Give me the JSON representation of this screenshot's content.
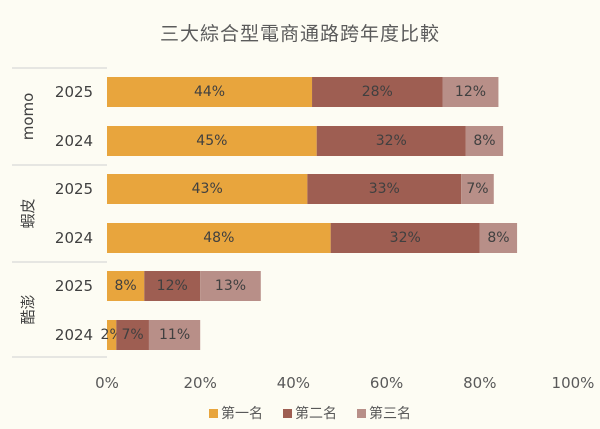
{
  "chart_data": {
    "type": "bar",
    "orientation": "horizontal",
    "stacked": true,
    "title": "三大綜合型電商通路跨年度比較",
    "groups": [
      {
        "name": "momo",
        "rows": [
          {
            "year": "2025",
            "values": [
              44,
              28,
              12
            ]
          },
          {
            "year": "2024",
            "values": [
              45,
              32,
              8
            ]
          }
        ]
      },
      {
        "name": "蝦皮",
        "rows": [
          {
            "year": "2025",
            "values": [
              43,
              33,
              7
            ]
          },
          {
            "year": "2024",
            "values": [
              48,
              32,
              8
            ]
          }
        ]
      },
      {
        "name": "酷澎",
        "rows": [
          {
            "year": "2025",
            "values": [
              8,
              12,
              13
            ]
          },
          {
            "year": "2024",
            "values": [
              2,
              7,
              11
            ]
          }
        ]
      }
    ],
    "series": [
      {
        "name": "第一名",
        "color": "#e8a53d"
      },
      {
        "name": "第二名",
        "color": "#9e5e52"
      },
      {
        "name": "第三名",
        "color": "#b88f88"
      }
    ],
    "xlim": [
      0,
      100
    ],
    "xticks": [
      "0%",
      "20%",
      "40%",
      "60%",
      "80%",
      "100%"
    ],
    "value_suffix": "%",
    "legend_position": "bottom",
    "grid": false
  }
}
